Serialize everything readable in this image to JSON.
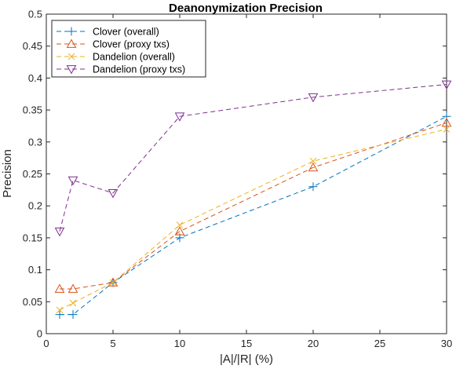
{
  "chart_data": {
    "type": "line",
    "title": "Deanonymization Precision",
    "xlabel": "|A|/|R| (%)",
    "ylabel": "Precision",
    "xlim": [
      0,
      30
    ],
    "ylim": [
      0,
      0.5
    ],
    "xticks": [
      "0",
      "5",
      "10",
      "15",
      "20",
      "25",
      "30"
    ],
    "yticks": [
      "0",
      "0.05",
      "0.1",
      "0.15",
      "0.2",
      "0.25",
      "0.3",
      "0.35",
      "0.4",
      "0.45",
      "0.5"
    ],
    "legend_position": "top-left",
    "grid": false,
    "series": [
      {
        "name": "Clover (overall)",
        "color": "#0072BD",
        "marker": "plus",
        "line_style": "dashed",
        "x": [
          1,
          2,
          5,
          10,
          20,
          30
        ],
        "values": [
          0.03,
          0.03,
          0.08,
          0.15,
          0.23,
          0.34
        ]
      },
      {
        "name": "Clover (proxy txs)",
        "color": "#D95319",
        "marker": "triangle-up",
        "line_style": "dashed",
        "x": [
          1,
          2,
          5,
          10,
          20,
          30
        ],
        "values": [
          0.07,
          0.07,
          0.08,
          0.16,
          0.26,
          0.33
        ]
      },
      {
        "name": "Dandelion (overall)",
        "color": "#EDB120",
        "marker": "x",
        "line_style": "dashed",
        "x": [
          1,
          2,
          5,
          10,
          20,
          30
        ],
        "values": [
          0.037,
          0.048,
          0.08,
          0.17,
          0.27,
          0.32
        ]
      },
      {
        "name": "Dandelion (proxy txs)",
        "color": "#7E2F8E",
        "marker": "triangle-down",
        "line_style": "dashed",
        "x": [
          1,
          2,
          5,
          10,
          20,
          30
        ],
        "values": [
          0.16,
          0.24,
          0.22,
          0.34,
          0.37,
          0.39
        ]
      }
    ]
  }
}
